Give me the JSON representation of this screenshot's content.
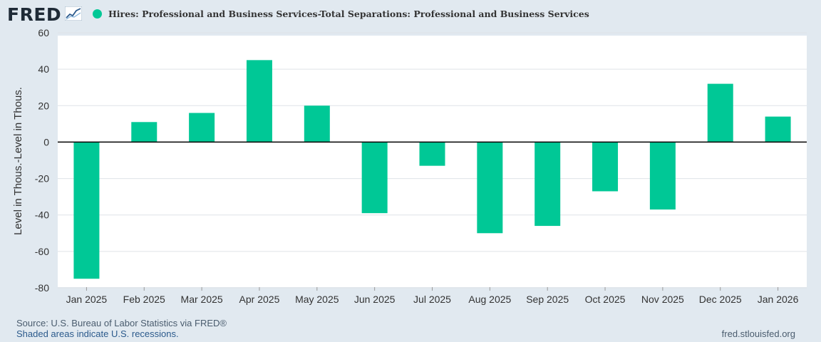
{
  "header": {
    "logo_text": "FRED",
    "legend_label": "Hires: Professional and Business Services-Total Separations: Professional and Business Services",
    "series_color": "#00c896"
  },
  "chart_data": {
    "type": "bar",
    "title": "Hires: Professional and Business Services-Total Separations: Professional and Business Services",
    "categories": [
      "Jan 2025",
      "Feb 2025",
      "Mar 2025",
      "Apr 2025",
      "May 2025",
      "Jun 2025",
      "Jul 2025",
      "Aug 2025",
      "Sep 2025",
      "Oct 2025",
      "Nov 2025",
      "Dec 2025",
      "Jan 2026"
    ],
    "values": [
      -75,
      11,
      16,
      45,
      20,
      -39,
      -13,
      -50,
      -46,
      -27,
      -37,
      32,
      14
    ],
    "ylabel": "Level in Thous.-Level in Thous.",
    "xlabel": "",
    "ylim": [
      -80,
      60
    ],
    "yticks": [
      60,
      40,
      20,
      0,
      -20,
      -40,
      -60,
      -80
    ],
    "grid": true,
    "legend": "top-left"
  },
  "footer": {
    "source": "Source: U.S. Bureau of Labor Statistics via FRED®",
    "recession_note": "Shaded areas indicate U.S. recessions.",
    "url": "fred.stlouisfed.org"
  }
}
